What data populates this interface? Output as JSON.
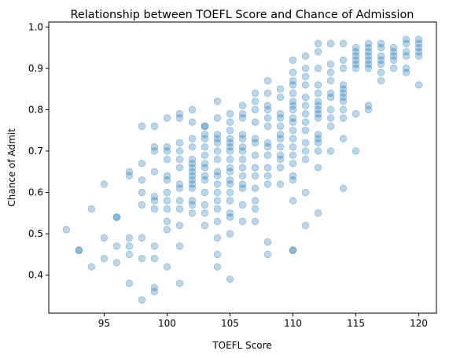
{
  "chart_data": {
    "type": "scatter",
    "title": "Relationship between TOEFL Score and Chance of Admission",
    "xlabel": "TOEFL Score",
    "ylabel": "Chance of Admit",
    "xlim": [
      90.6,
      121.4
    ],
    "ylim": [
      0.308,
      1.012
    ],
    "xticks": [
      95,
      100,
      105,
      110,
      115,
      120
    ],
    "yticks": [
      0.4,
      0.5,
      0.6,
      0.7,
      0.8,
      0.9,
      1.0
    ],
    "xtick_labels": [
      "95",
      "100",
      "105",
      "110",
      "115",
      "120"
    ],
    "ytick_labels": [
      "0.4",
      "0.5",
      "0.6",
      "0.7",
      "0.8",
      "0.9",
      "1.0"
    ],
    "grid": false,
    "marker_color": "#1f77b4",
    "marker_alpha": 0.3,
    "series": [
      {
        "x": [
          92,
          93,
          93,
          94,
          94,
          95,
          95,
          95,
          96,
          96,
          96,
          96,
          97,
          97,
          97,
          97,
          97,
          97,
          98,
          98,
          98,
          98,
          98,
          98,
          98,
          98,
          99,
          99,
          99,
          99,
          99,
          99,
          99,
          99,
          99,
          99,
          99,
          100,
          100,
          100,
          100,
          100,
          100,
          100,
          100,
          100,
          100,
          100,
          100,
          101,
          101,
          101,
          101,
          101,
          101,
          101,
          101,
          101,
          101,
          101,
          101,
          101,
          102,
          102,
          102,
          102,
          102,
          102,
          102,
          102,
          102,
          102,
          102,
          102,
          102,
          102,
          102,
          103,
          103,
          103,
          103,
          103,
          103,
          103,
          103,
          103,
          103,
          103,
          103,
          103,
          103,
          104,
          104,
          104,
          104,
          104,
          104,
          104,
          104,
          104,
          104,
          104,
          104,
          104,
          104,
          104,
          104,
          104,
          105,
          105,
          105,
          105,
          105,
          105,
          105,
          105,
          105,
          105,
          105,
          105,
          105,
          105,
          105,
          105,
          105,
          105,
          106,
          106,
          106,
          106,
          106,
          106,
          106,
          106,
          106,
          106,
          106,
          106,
          106,
          106,
          107,
          107,
          107,
          107,
          107,
          107,
          107,
          107,
          107,
          107,
          107,
          107,
          107,
          108,
          108,
          108,
          108,
          108,
          108,
          108,
          108,
          108,
          108,
          108,
          108,
          108,
          108,
          109,
          109,
          109,
          109,
          109,
          109,
          109,
          109,
          109,
          109,
          109,
          109,
          110,
          110,
          110,
          110,
          110,
          110,
          110,
          110,
          110,
          110,
          110,
          110,
          110,
          110,
          110,
          110,
          110,
          110,
          110,
          110,
          111,
          111,
          111,
          111,
          111,
          111,
          111,
          111,
          111,
          111,
          111,
          111,
          111,
          111,
          112,
          112,
          112,
          112,
          112,
          112,
          112,
          112,
          112,
          112,
          112,
          112,
          112,
          112,
          112,
          112,
          113,
          113,
          113,
          113,
          113,
          113,
          113,
          113,
          113,
          113,
          114,
          114,
          114,
          114,
          114,
          114,
          114,
          114,
          114,
          114,
          114,
          114,
          115,
          115,
          115,
          115,
          115,
          115,
          115,
          115,
          116,
          116,
          116,
          116,
          116,
          116,
          116,
          116,
          116,
          117,
          117,
          117,
          117,
          117,
          117,
          117,
          118,
          118,
          118,
          118,
          118,
          119,
          119,
          119,
          119,
          119,
          119,
          120,
          120,
          120,
          120,
          120,
          120
        ],
        "y": [
          0.51,
          0.46,
          0.46,
          0.56,
          0.42,
          0.62,
          0.49,
          0.44,
          0.54,
          0.54,
          0.47,
          0.43,
          0.65,
          0.64,
          0.49,
          0.47,
          0.45,
          0.38,
          0.76,
          0.67,
          0.63,
          0.6,
          0.57,
          0.49,
          0.44,
          0.34,
          0.76,
          0.71,
          0.7,
          0.65,
          0.59,
          0.58,
          0.56,
          0.47,
          0.44,
          0.37,
          0.36,
          0.78,
          0.71,
          0.7,
          0.68,
          0.64,
          0.63,
          0.6,
          0.58,
          0.56,
          0.53,
          0.51,
          0.42,
          0.79,
          0.78,
          0.72,
          0.7,
          0.68,
          0.66,
          0.62,
          0.61,
          0.58,
          0.56,
          0.52,
          0.47,
          0.38,
          0.8,
          0.77,
          0.73,
          0.71,
          0.68,
          0.67,
          0.66,
          0.65,
          0.64,
          0.63,
          0.62,
          0.61,
          0.58,
          0.57,
          0.55,
          0.76,
          0.76,
          0.74,
          0.73,
          0.71,
          0.69,
          0.67,
          0.66,
          0.64,
          0.63,
          0.6,
          0.57,
          0.55,
          0.52,
          0.82,
          0.78,
          0.74,
          0.73,
          0.72,
          0.7,
          0.68,
          0.65,
          0.64,
          0.62,
          0.6,
          0.58,
          0.56,
          0.53,
          0.49,
          0.45,
          0.42,
          0.79,
          0.77,
          0.75,
          0.73,
          0.72,
          0.71,
          0.7,
          0.68,
          0.66,
          0.65,
          0.63,
          0.62,
          0.6,
          0.58,
          0.55,
          0.54,
          0.5,
          0.39,
          0.81,
          0.79,
          0.78,
          0.74,
          0.73,
          0.71,
          0.7,
          0.68,
          0.66,
          0.64,
          0.62,
          0.61,
          0.57,
          0.53,
          0.84,
          0.82,
          0.8,
          0.77,
          0.73,
          0.72,
          0.69,
          0.66,
          0.64,
          0.61,
          0.58,
          0.56,
          0.53,
          0.87,
          0.84,
          0.81,
          0.8,
          0.78,
          0.76,
          0.72,
          0.71,
          0.69,
          0.66,
          0.64,
          0.62,
          0.48,
          0.45,
          0.85,
          0.83,
          0.79,
          0.78,
          0.76,
          0.74,
          0.73,
          0.71,
          0.69,
          0.68,
          0.66,
          0.62,
          0.92,
          0.89,
          0.87,
          0.86,
          0.84,
          0.82,
          0.81,
          0.8,
          0.78,
          0.77,
          0.75,
          0.73,
          0.71,
          0.69,
          0.67,
          0.64,
          0.63,
          0.58,
          0.46,
          0.46,
          0.93,
          0.9,
          0.88,
          0.86,
          0.83,
          0.81,
          0.79,
          0.77,
          0.75,
          0.72,
          0.7,
          0.68,
          0.6,
          0.52,
          0.96,
          0.94,
          0.9,
          0.86,
          0.84,
          0.82,
          0.81,
          0.8,
          0.79,
          0.78,
          0.74,
          0.73,
          0.72,
          0.7,
          0.66,
          0.55,
          0.96,
          0.91,
          0.89,
          0.87,
          0.84,
          0.83,
          0.8,
          0.78,
          0.76,
          0.7,
          0.96,
          0.92,
          0.9,
          0.86,
          0.85,
          0.84,
          0.83,
          0.82,
          0.8,
          0.78,
          0.73,
          0.61,
          0.95,
          0.94,
          0.93,
          0.92,
          0.91,
          0.9,
          0.79,
          0.7,
          0.96,
          0.95,
          0.94,
          0.93,
          0.92,
          0.91,
          0.9,
          0.81,
          0.8,
          0.96,
          0.95,
          0.93,
          0.92,
          0.91,
          0.89,
          0.87,
          0.95,
          0.94,
          0.93,
          0.92,
          0.9,
          0.97,
          0.96,
          0.94,
          0.93,
          0.9,
          0.89,
          0.97,
          0.96,
          0.95,
          0.94,
          0.93,
          0.86
        ]
      }
    ]
  }
}
